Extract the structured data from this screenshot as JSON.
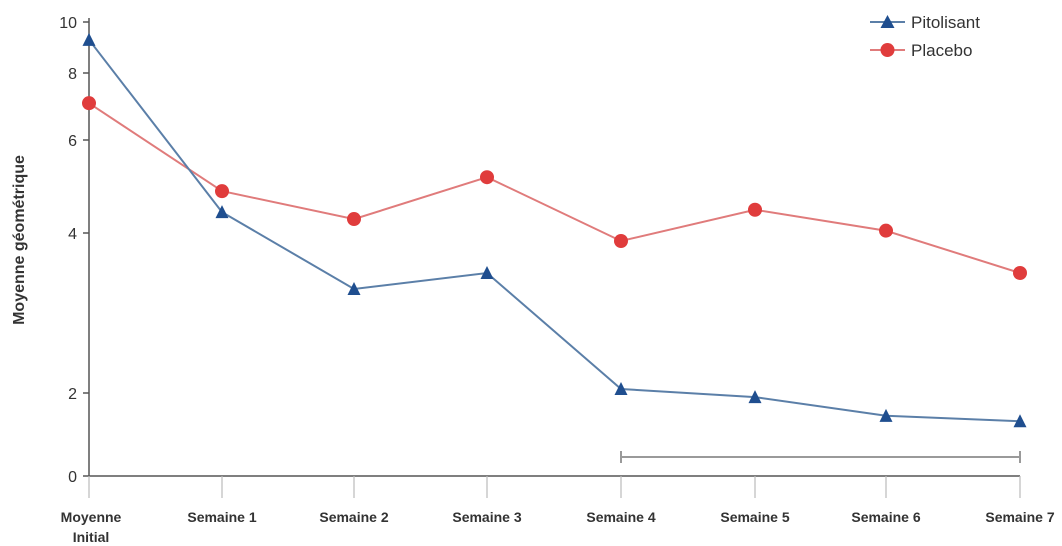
{
  "chart_data": {
    "type": "line",
    "ylabel": "Moyenne géométrique",
    "y_ticks": [
      "0",
      "2",
      "4",
      "6",
      "8",
      "10"
    ],
    "categories": [
      [
        "Moyenne",
        "Initial"
      ],
      [
        "Semaine 1"
      ],
      [
        "Semaine 2"
      ],
      [
        "Semaine 3"
      ],
      [
        "Semaine 4"
      ],
      [
        "Semaine 5"
      ],
      [
        "Semaine 6"
      ],
      [
        "Semaine 7"
      ]
    ],
    "series": [
      {
        "name": "Pitolisant",
        "color": "#5b7fa8",
        "marker_color": "#1f4e8f",
        "marker": "triangle",
        "values": [
          9.3,
          4.45,
          3.3,
          3.5,
          2.05,
          1.9,
          1.45,
          1.32
        ]
      },
      {
        "name": "Placebo",
        "color": "#e07b7b",
        "marker_color": "#e03c3c",
        "marker": "circle",
        "values": [
          7.1,
          4.9,
          4.3,
          5.2,
          3.9,
          4.5,
          4.05,
          3.5
        ]
      }
    ],
    "bracket": {
      "from_category": 4,
      "to_category": 7
    },
    "legend_position": "top-right",
    "grid": false
  }
}
